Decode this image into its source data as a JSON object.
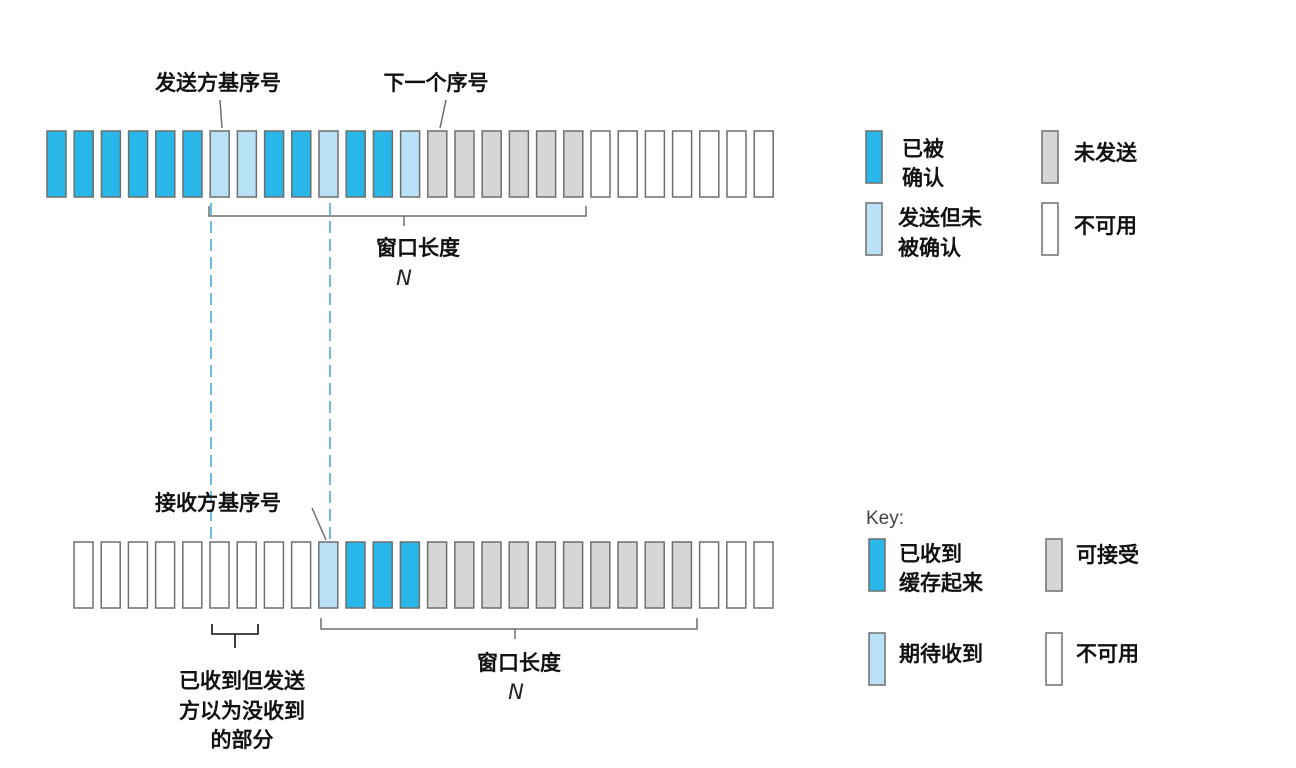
{
  "colors": {
    "acked": "#29b6e8",
    "sent_not_acked": "#b9e1f6",
    "not_sent": "#d6d6d6",
    "unusable": "#ffffff",
    "received_buffered": "#29b6e8",
    "expected": "#b9e1f6",
    "acceptable": "#d6d6d6",
    "dashed": "#3ba7d6",
    "stroke": "#6e6e6e"
  },
  "sender": {
    "base_label": "发送方基序号",
    "next_label": "下一个序号",
    "window_label": "窗口长度",
    "window_n": "N",
    "cells": [
      "acked",
      "acked",
      "acked",
      "acked",
      "acked",
      "acked",
      "sent_not_acked",
      "sent_not_acked",
      "acked",
      "acked",
      "sent_not_acked",
      "acked",
      "acked",
      "sent_not_acked",
      "not_sent",
      "not_sent",
      "not_sent",
      "not_sent",
      "not_sent",
      "not_sent",
      "unusable",
      "unusable",
      "unusable",
      "unusable",
      "unusable",
      "unusable",
      "unusable"
    ]
  },
  "sender_legend": {
    "acked": [
      "已被",
      "确认"
    ],
    "sent_not_acked": [
      "发送但未",
      "被确认"
    ],
    "not_sent": "未发送",
    "unusable": "不可用"
  },
  "receiver": {
    "base_label": "接收方基序号",
    "window_label": "窗口长度",
    "window_n": "N",
    "already_received_label": [
      "已收到但发送",
      "方以为没收到",
      "的部分"
    ],
    "cells": [
      "unusable",
      "unusable",
      "unusable",
      "unusable",
      "unusable",
      "unusable",
      "unusable",
      "unusable",
      "unusable",
      "expected",
      "received_buffered",
      "received_buffered",
      "received_buffered",
      "acceptable",
      "acceptable",
      "acceptable",
      "acceptable",
      "acceptable",
      "acceptable",
      "acceptable",
      "acceptable",
      "acceptable",
      "acceptable",
      "unusable",
      "unusable",
      "unusable"
    ]
  },
  "receiver_legend": {
    "key": "Key:",
    "received_buffered": [
      "已收到",
      "缓存起来"
    ],
    "acceptable": "可接受",
    "expected": "期待收到",
    "unusable": "不可用"
  }
}
